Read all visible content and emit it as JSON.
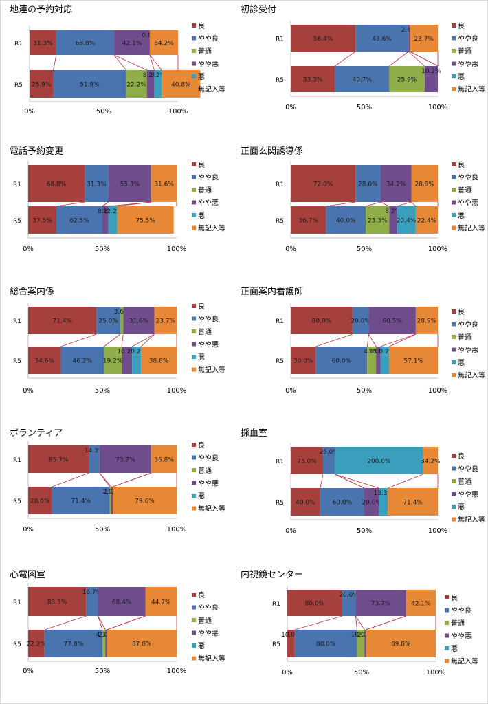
{
  "legend": {
    "labels": [
      "良",
      "やや良",
      "普通",
      "やや悪",
      "悪",
      "無記入等"
    ],
    "colors": [
      "#A5403D",
      "#4A74AE",
      "#8FAD49",
      "#6F4D8D",
      "#3A9FBD",
      "#E68836"
    ]
  },
  "chart_data": [
    {
      "type": "bar",
      "stacked": "horizontal-100%",
      "title": "地連の予約対応",
      "categories": [
        "R1",
        "R5"
      ],
      "axis_ticks": [
        "0%",
        "50%",
        "100%"
      ],
      "series": [
        {
          "name": "良",
          "values": [
            0.18,
            0.16
          ],
          "labels": [
            "31.3%",
            "25.9%"
          ]
        },
        {
          "name": "やや良",
          "values": [
            0.39,
            0.49
          ],
          "labels": [
            "68.8%",
            "51.9%"
          ]
        },
        {
          "name": "普通",
          "values": [
            0.0,
            0.14
          ],
          "labels": [
            "",
            "22.2%"
          ]
        },
        {
          "name": "やや悪",
          "values": [
            0.24,
            0.05
          ],
          "labels": [
            "42.1%",
            "8.2%"
          ]
        },
        {
          "name": "悪",
          "values": [
            0.0,
            0.05
          ],
          "labels": [
            "0.0%",
            "8.2%"
          ]
        },
        {
          "name": "無記入等",
          "values": [
            0.19,
            0.26
          ],
          "labels": [
            "34.2%",
            "40.8%"
          ]
        }
      ]
    },
    {
      "type": "bar",
      "stacked": "horizontal-100%",
      "title": "初診受付",
      "categories": [
        "R1",
        "R5"
      ],
      "axis_ticks": [
        "0%",
        "50%",
        "100%"
      ],
      "series": [
        {
          "name": "良",
          "values": [
            0.44,
            0.3
          ],
          "labels": [
            "56.4%",
            "33.3%"
          ]
        },
        {
          "name": "やや良",
          "values": [
            0.36,
            0.37
          ],
          "labels": [
            "43.6%",
            "40.7%"
          ]
        },
        {
          "name": "普通",
          "values": [
            0.0,
            0.24
          ],
          "labels": [
            "",
            "25.9%"
          ]
        },
        {
          "name": "やや悪",
          "values": [
            0.01,
            0.09
          ],
          "labels": [
            "2.6%",
            "10.2%"
          ]
        },
        {
          "name": "悪",
          "values": [
            0.0,
            0.0
          ],
          "labels": [
            "",
            ""
          ]
        },
        {
          "name": "無記入等",
          "values": [
            0.19,
            0.0
          ],
          "labels": [
            "23.7%",
            ""
          ]
        }
      ]
    },
    {
      "type": "bar",
      "stacked": "horizontal-100%",
      "title": "電話予約変更",
      "categories": [
        "R1",
        "R5"
      ],
      "axis_ticks": [
        "0%",
        "50%",
        "100%"
      ],
      "series": [
        {
          "name": "良",
          "values": [
            0.38,
            0.19
          ],
          "labels": [
            "68.8%",
            "37.5%"
          ]
        },
        {
          "name": "やや良",
          "values": [
            0.16,
            0.31
          ],
          "labels": [
            "31.3%",
            "62.5%"
          ]
        },
        {
          "name": "普通",
          "values": [
            0.0,
            0.0
          ],
          "labels": [
            "",
            ""
          ]
        },
        {
          "name": "やや悪",
          "values": [
            0.29,
            0.04
          ],
          "labels": [
            "55.3%",
            "8.2%"
          ]
        },
        {
          "name": "悪",
          "values": [
            0.0,
            0.06
          ],
          "labels": [
            "",
            "12.2%"
          ]
        },
        {
          "name": "無記入等",
          "values": [
            0.17,
            0.38
          ],
          "labels": [
            "31.6%",
            "75.5%"
          ]
        }
      ]
    },
    {
      "type": "bar",
      "stacked": "horizontal-100%",
      "title": "正面玄関誘導係",
      "categories": [
        "R1",
        "R5"
      ],
      "axis_ticks": [
        "0%",
        "50%",
        "100%"
      ],
      "series": [
        {
          "name": "良",
          "values": [
            0.44,
            0.24
          ],
          "labels": [
            "72.0%",
            "36.7%"
          ]
        },
        {
          "name": "やや良",
          "values": [
            0.17,
            0.27
          ],
          "labels": [
            "28.0%",
            "40.0%"
          ]
        },
        {
          "name": "普通",
          "values": [
            0.0,
            0.16
          ],
          "labels": [
            "",
            "23.3%"
          ]
        },
        {
          "name": "やや悪",
          "values": [
            0.21,
            0.05
          ],
          "labels": [
            "34.2%",
            "8.2%"
          ]
        },
        {
          "name": "悪",
          "values": [
            0.0,
            0.13
          ],
          "labels": [
            "",
            "20.4%"
          ]
        },
        {
          "name": "無記入等",
          "values": [
            0.18,
            0.15
          ],
          "labels": [
            "28.9%",
            "22.4%"
          ]
        }
      ]
    },
    {
      "type": "bar",
      "stacked": "horizontal-100%",
      "title": "総合案内係",
      "categories": [
        "R1",
        "R5"
      ],
      "axis_ticks": [
        "0%",
        "50%",
        "100%"
      ],
      "series": [
        {
          "name": "良",
          "values": [
            0.46,
            0.22
          ],
          "labels": [
            "71.4%",
            "34.6%"
          ]
        },
        {
          "name": "やや良",
          "values": [
            0.16,
            0.29
          ],
          "labels": [
            "25.0%",
            "46.2%"
          ]
        },
        {
          "name": "普通",
          "values": [
            0.02,
            0.12
          ],
          "labels": [
            "3.6%",
            "19.2%"
          ]
        },
        {
          "name": "やや悪",
          "values": [
            0.21,
            0.07
          ],
          "labels": [
            "31.6%",
            "10.2%"
          ]
        },
        {
          "name": "悪",
          "values": [
            0.0,
            0.06
          ],
          "labels": [
            "",
            "10.2%"
          ]
        },
        {
          "name": "無記入等",
          "values": [
            0.15,
            0.24
          ],
          "labels": [
            "23.7%",
            "38.8%"
          ]
        }
      ]
    },
    {
      "type": "bar",
      "stacked": "horizontal-100%",
      "title": "正面案内看護師",
      "categories": [
        "R1",
        "R5"
      ],
      "axis_ticks": [
        "0%",
        "50%",
        "100%"
      ],
      "series": [
        {
          "name": "良",
          "values": [
            0.42,
            0.17
          ],
          "labels": [
            "80.0%",
            "30.0%"
          ]
        },
        {
          "name": "やや良",
          "values": [
            0.11,
            0.35
          ],
          "labels": [
            "20.0%",
            "60.0%"
          ]
        },
        {
          "name": "普通",
          "values": [
            0.0,
            0.06
          ],
          "labels": [
            "",
            "4.1%"
          ]
        },
        {
          "name": "やや悪",
          "values": [
            0.32,
            0.03
          ],
          "labels": [
            "60.5%",
            "10.0%"
          ]
        },
        {
          "name": "悪",
          "values": [
            0.0,
            0.06
          ],
          "labels": [
            "",
            "10.2%"
          ]
        },
        {
          "name": "無記入等",
          "values": [
            0.15,
            0.33
          ],
          "labels": [
            "28.9%",
            "57.1%"
          ]
        }
      ]
    },
    {
      "type": "bar",
      "stacked": "horizontal-100%",
      "title": "ボランティア",
      "categories": [
        "R1",
        "R5"
      ],
      "axis_ticks": [
        "0%",
        "50%",
        "100%"
      ],
      "series": [
        {
          "name": "良",
          "values": [
            0.41,
            0.16
          ],
          "labels": [
            "85.7%",
            "28.6%"
          ]
        },
        {
          "name": "やや良",
          "values": [
            0.07,
            0.39
          ],
          "labels": [
            "14.3%",
            "71.4%"
          ]
        },
        {
          "name": "普通",
          "values": [
            0.0,
            0.01
          ],
          "labels": [
            "",
            "2.0%"
          ]
        },
        {
          "name": "やや悪",
          "values": [
            0.35,
            0.01
          ],
          "labels": [
            "73.7%",
            "2.0%"
          ]
        },
        {
          "name": "悪",
          "values": [
            0.0,
            0.0
          ],
          "labels": [
            "",
            ""
          ]
        },
        {
          "name": "無記入等",
          "values": [
            0.17,
            0.43
          ],
          "labels": [
            "36.8%",
            "79.6%"
          ]
        }
      ]
    },
    {
      "type": "bar",
      "stacked": "horizontal-100%",
      "title": "採血室",
      "categories": [
        "R1",
        "R5"
      ],
      "axis_ticks": [
        "0%",
        "50%",
        "100%"
      ],
      "series": [
        {
          "name": "良",
          "values": [
            0.22,
            0.2
          ],
          "labels": [
            "75.0%",
            "40.0%"
          ]
        },
        {
          "name": "やや良",
          "values": [
            0.08,
            0.3
          ],
          "labels": [
            "25.0%",
            "60.0%"
          ]
        },
        {
          "name": "普通",
          "values": [
            0.0,
            0.0
          ],
          "labels": [
            "",
            ""
          ]
        },
        {
          "name": "やや悪",
          "values": [
            0.0,
            0.1
          ],
          "labels": [
            "",
            "20.0%"
          ]
        },
        {
          "name": "悪",
          "values": [
            0.6,
            0.06
          ],
          "labels": [
            "200.0%",
            "13.3%"
          ]
        },
        {
          "name": "無記入等",
          "values": [
            0.1,
            0.34
          ],
          "labels": [
            "34.2%",
            "71.4%"
          ]
        }
      ]
    },
    {
      "type": "bar",
      "stacked": "horizontal-100%",
      "title": "心電図室",
      "categories": [
        "R1",
        "R5"
      ],
      "axis_ticks": [
        "0%",
        "50%",
        "100%"
      ],
      "series": [
        {
          "name": "良",
          "values": [
            0.39,
            0.11
          ],
          "labels": [
            "83.3%",
            "22.2%"
          ]
        },
        {
          "name": "やや良",
          "values": [
            0.08,
            0.39
          ],
          "labels": [
            "16.7%",
            "77.8%"
          ]
        },
        {
          "name": "普通",
          "values": [
            0.0,
            0.02
          ],
          "labels": [
            "",
            "4.1%"
          ]
        },
        {
          "name": "やや悪",
          "values": [
            0.32,
            0.01
          ],
          "labels": [
            "68.4%",
            "2.0%"
          ]
        },
        {
          "name": "悪",
          "values": [
            0.0,
            0.0
          ],
          "labels": [
            "",
            ""
          ]
        },
        {
          "name": "無記入等",
          "values": [
            0.21,
            0.47
          ],
          "labels": [
            "44.7%",
            "87.8%"
          ]
        }
      ]
    },
    {
      "type": "bar",
      "stacked": "horizontal-100%",
      "title": "内視鏡センター",
      "categories": [
        "R1",
        "R5"
      ],
      "axis_ticks": [
        "0%",
        "50%",
        "100%"
      ],
      "series": [
        {
          "name": "良",
          "values": [
            0.37,
            0.05
          ],
          "labels": [
            "80.0%",
            "10.0%"
          ]
        },
        {
          "name": "やや良",
          "values": [
            0.09,
            0.42
          ],
          "labels": [
            "20.0%",
            "80.0%"
          ]
        },
        {
          "name": "普通",
          "values": [
            0.0,
            0.05
          ],
          "labels": [
            "",
            "10.0%"
          ]
        },
        {
          "name": "やや悪",
          "values": [
            0.34,
            0.01
          ],
          "labels": [
            "73.7%",
            "2.0%"
          ]
        },
        {
          "name": "悪",
          "values": [
            0.0,
            0.0
          ],
          "labels": [
            "",
            ""
          ]
        },
        {
          "name": "無記入等",
          "values": [
            0.2,
            0.47
          ],
          "labels": [
            "42.1%",
            "89.8%"
          ]
        }
      ]
    }
  ]
}
